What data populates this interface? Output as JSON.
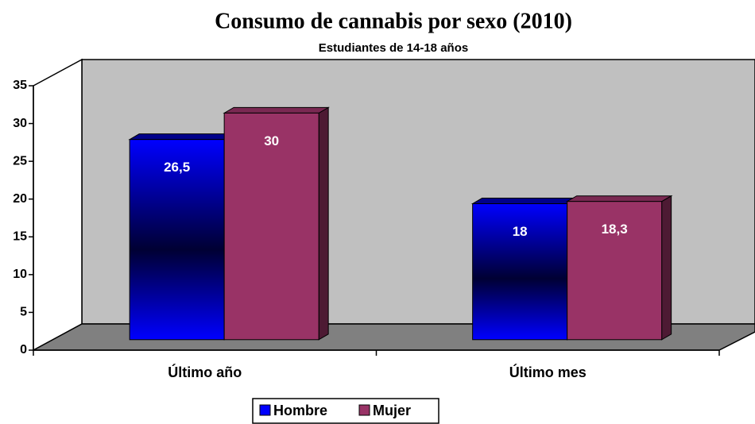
{
  "chart_data": {
    "type": "bar3d",
    "title": "Consumo de cannabis por sexo (2010)",
    "subtitle": "Estudiantes de 14-18 años",
    "categories": [
      "Último año",
      "Último mes"
    ],
    "series": [
      {
        "name": "Hombre",
        "color": "#0000ff",
        "values": [
          26.5,
          18
        ],
        "value_labels": [
          "26,5",
          "18"
        ]
      },
      {
        "name": "Mujer",
        "color": "#993366",
        "values": [
          30,
          18.3
        ],
        "value_labels": [
          "30",
          "18,3"
        ]
      }
    ],
    "ylim": [
      0,
      35
    ],
    "yticks": [
      0,
      5,
      10,
      15,
      20,
      25,
      30,
      35
    ],
    "legend": "bottom"
  }
}
